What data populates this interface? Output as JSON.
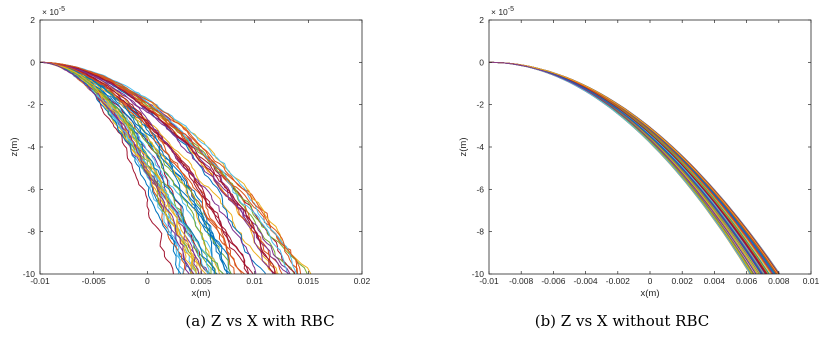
{
  "captions": [
    "(a) Z vs X with RBC",
    "(b) Z vs X without RBC"
  ],
  "chart_data": [
    {
      "type": "line",
      "title": "",
      "xlabel": "x(m)",
      "ylabel": "z(m)",
      "xlim": [
        -0.01,
        0.02
      ],
      "ylim": [
        -10,
        2
      ],
      "y_multiplier": "× 10^-5",
      "x_ticks": [
        -0.01,
        -0.005,
        0,
        0.005,
        0.01,
        0.015,
        0.02
      ],
      "x_tick_labels": [
        "-0.01",
        "-0.005",
        "0",
        "0.005",
        "0.01",
        "0.015",
        "0.02"
      ],
      "y_ticks": [
        -10,
        -8,
        -6,
        -4,
        -2,
        0,
        2
      ],
      "y_tick_labels": [
        "-10",
        "-8",
        "-6",
        "-4",
        "-2",
        "0",
        "2"
      ],
      "grid": false,
      "legend": "none",
      "trajectory_count": 60,
      "start_point": [
        -0.01,
        0
      ],
      "end_x_range": [
        0.004,
        0.0155
      ],
      "noisy": true,
      "colors": [
        "#0072BD",
        "#D95319",
        "#EDB120",
        "#7E2F8E",
        "#77AC30",
        "#4DBEEE",
        "#A2142F"
      ]
    },
    {
      "type": "line",
      "title": "",
      "xlabel": "x(m)",
      "ylabel": "z(m)",
      "xlim": [
        -0.01,
        0.01
      ],
      "ylim": [
        -10,
        2
      ],
      "y_multiplier": "× 10^-5",
      "x_ticks": [
        -0.01,
        -0.008,
        -0.006,
        -0.004,
        -0.002,
        0,
        0.002,
        0.004,
        0.006,
        0.008,
        0.01
      ],
      "x_tick_labels": [
        "-0.01",
        "-0.008",
        "-0.006",
        "-0.004",
        "-0.002",
        "0",
        "0.002",
        "0.004",
        "0.006",
        "0.008",
        "0.01"
      ],
      "y_ticks": [
        -10,
        -8,
        -6,
        -4,
        -2,
        0,
        2
      ],
      "y_tick_labels": [
        "-10",
        "-8",
        "-6",
        "-4",
        "-2",
        "0",
        "2"
      ],
      "grid": false,
      "legend": "none",
      "trajectory_count": 60,
      "start_point": [
        -0.01,
        0
      ],
      "end_x_range": [
        0.0065,
        0.0085
      ],
      "noisy": false,
      "colors": [
        "#0072BD",
        "#D95319",
        "#EDB120",
        "#7E2F8E",
        "#77AC30",
        "#4DBEEE",
        "#A2142F"
      ]
    }
  ]
}
